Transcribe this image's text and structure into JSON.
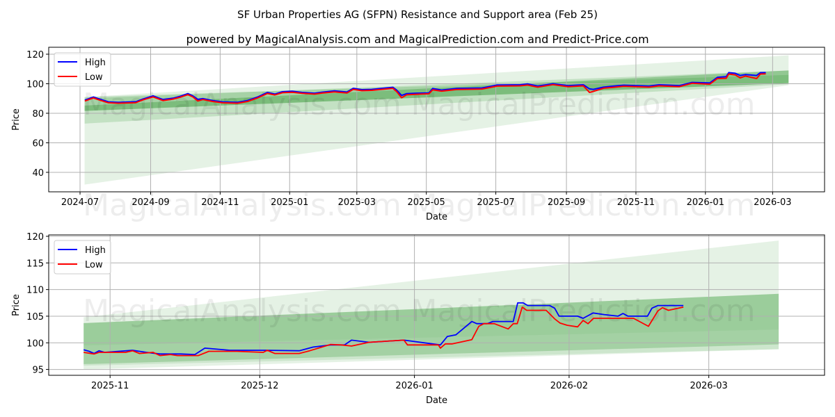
{
  "title": "SF Urban Properties AG (SFPN) Resistance and Support area (Feb 25)",
  "subtitle": "powered by MagicalAnalysis.com and MagicalPrediction.com and Predict-Price.com",
  "watermark": {
    "left": "MagicalAnalysis.com",
    "right": "MagicalPrediction.com"
  },
  "colors": {
    "high": "#0000ff",
    "low": "#ff0000",
    "band": "#008000",
    "grid": "#b0b0b0"
  },
  "chart_data": [
    {
      "type": "line",
      "name": "full-range",
      "x_unit": "days since 2024-07-01",
      "xlabel": "Date",
      "ylabel": "Price",
      "xlim": [
        -27.5,
        653.6
      ],
      "ylim": [
        26.8,
        124.7
      ],
      "grid": true,
      "legend": "top-left",
      "xticks": [
        {
          "v": 0,
          "label": "2024-07"
        },
        {
          "v": 62,
          "label": "2024-09"
        },
        {
          "v": 123,
          "label": "2024-11"
        },
        {
          "v": 184,
          "label": "2025-01"
        },
        {
          "v": 243,
          "label": "2025-03"
        },
        {
          "v": 304,
          "label": "2025-05"
        },
        {
          "v": 365,
          "label": "2025-07"
        },
        {
          "v": 427,
          "label": "2025-09"
        },
        {
          "v": 488,
          "label": "2025-11"
        },
        {
          "v": 549,
          "label": "2026-01"
        },
        {
          "v": 608,
          "label": "2026-03"
        }
      ],
      "yticks": [
        {
          "v": 40,
          "label": "40"
        },
        {
          "v": 60,
          "label": "60"
        },
        {
          "v": 80,
          "label": "80"
        },
        {
          "v": 100,
          "label": "100"
        },
        {
          "v": 120,
          "label": "120"
        }
      ],
      "bands": [
        {
          "x": [
            4,
            622
          ],
          "start": [
            31.7,
            91.0
          ],
          "end": [
            99.0,
            119.2
          ],
          "opacity": 0.1
        },
        {
          "x": [
            4,
            622
          ],
          "start": [
            73.0,
            90.0
          ],
          "end": [
            99.7,
            109.0
          ],
          "opacity": 0.15
        },
        {
          "x": [
            4,
            622
          ],
          "start": [
            81.6,
            91.0
          ],
          "end": [
            100.4,
            106.0
          ],
          "opacity": 0.15
        },
        {
          "x": [
            4,
            622
          ],
          "start": [
            81.6,
            85.2
          ],
          "end": [
            100.4,
            109.0
          ],
          "opacity": 0.25
        }
      ],
      "series": [
        {
          "name": "High",
          "x": [
            4.2,
            11.8,
            16.1,
            24.9,
            33.6,
            48.9,
            55.4,
            64.1,
            68.5,
            72.8,
            81.6,
            88.1,
            94.7,
            99,
            103.4,
            107.8,
            116.5,
            125.2,
            138.3,
            147,
            155.8,
            164.5,
            171,
            177.6,
            186.3,
            195,
            205.9,
            212.5,
            223.4,
            234.3,
            239.8,
            247.4,
            256.1,
            264.9,
            274.6,
            277.9,
            282.3,
            286.7,
            295.4,
            306.3,
            309.6,
            317.4,
            330.7,
            352.9,
            366.2,
            386.3,
            392.9,
            401.8,
            415.1,
            428.5,
            441.8,
            447.3,
            450.6,
            459.6,
            468.4,
            477.3,
            499.5,
            508.4,
            526.2,
            537.3,
            552.8,
            559.5,
            567.3,
            569.5,
            575.1,
            579.5,
            584,
            594,
            597.2,
            602
          ],
          "values": [
            88.9,
            91,
            89.9,
            87.7,
            87.4,
            87.8,
            89.7,
            91.8,
            90.5,
            89.3,
            90.2,
            91.5,
            93.3,
            91.8,
            89.4,
            89.9,
            88.6,
            87.7,
            87.4,
            88.6,
            91,
            94.1,
            93,
            94.6,
            94.9,
            94.1,
            93.6,
            94.3,
            95.2,
            94.4,
            96.9,
            96,
            96.2,
            96.9,
            97.6,
            95.7,
            92.1,
            93.3,
            93.6,
            93.8,
            96.8,
            95.7,
            96.8,
            97.1,
            99.1,
            99.3,
            99.9,
            98.4,
            100,
            98.7,
            99.3,
            96.5,
            96.2,
            97.7,
            98.4,
            99,
            98.4,
            99.3,
            98.7,
            100.9,
            100.5,
            104.3,
            104.8,
            107.5,
            107.1,
            105.6,
            106.2,
            105.6,
            107.5,
            107.5
          ]
        },
        {
          "name": "Low",
          "x": [
            4.2,
            11.8,
            16.1,
            24.9,
            33.6,
            48.9,
            55.4,
            64.1,
            68.5,
            72.8,
            81.6,
            88.1,
            94.7,
            99,
            103.4,
            107.8,
            116.5,
            125.2,
            138.3,
            147,
            155.8,
            164.5,
            171,
            177.6,
            186.3,
            195,
            205.9,
            212.5,
            223.4,
            234.3,
            239.8,
            247.4,
            256.1,
            264.9,
            274.6,
            277.9,
            282.3,
            286.7,
            295.4,
            306.3,
            309.6,
            317.4,
            330.7,
            352.9,
            366.2,
            386.3,
            392.9,
            401.8,
            415.1,
            428.5,
            441.8,
            447.3,
            450.6,
            459.6,
            468.4,
            477.3,
            499.5,
            508.4,
            526.2,
            537.3,
            552.8,
            559.5,
            567.3,
            569.5,
            575.1,
            579.5,
            584,
            594,
            597.2,
            602
          ],
          "values": [
            88.3,
            90.4,
            89.2,
            87.1,
            86.8,
            87.2,
            89.1,
            91.1,
            89.8,
            88.6,
            89.6,
            90.9,
            92.6,
            91.1,
            88.3,
            89.3,
            88,
            87.1,
            86.8,
            88,
            90.4,
            93.4,
            92.4,
            93.9,
            94.2,
            93.5,
            93,
            93.7,
            94.5,
            93.8,
            96.2,
            95.3,
            95.5,
            96.2,
            96.9,
            94.7,
            90.5,
            92.5,
            92.9,
            93.2,
            95.9,
            95,
            96.1,
            96.4,
            98.4,
            98.6,
            99.1,
            97.7,
            99.4,
            98,
            98.6,
            94.1,
            94.8,
            97,
            97.6,
            98.3,
            97.7,
            98.6,
            98,
            100.3,
            99.7,
            103.5,
            103.7,
            106.6,
            106,
            104,
            105.2,
            103.5,
            106.6,
            106.7
          ]
        }
      ]
    },
    {
      "type": "line",
      "name": "zoomed",
      "x_unit": "days since 2025-11-01",
      "xlabel": "Date",
      "ylabel": "Price",
      "xlim": [
        -12.3,
        143.2
      ],
      "ylim": [
        93.9,
        120.26
      ],
      "grid": true,
      "legend": "top-left",
      "xticks": [
        {
          "v": 0,
          "label": "2025-11"
        },
        {
          "v": 30,
          "label": "2025-12"
        },
        {
          "v": 61,
          "label": "2026-01"
        },
        {
          "v": 92,
          "label": "2026-02"
        },
        {
          "v": 120,
          "label": "2026-03"
        }
      ],
      "yticks": [
        {
          "v": 95,
          "label": "95"
        },
        {
          "v": 100,
          "label": "100"
        },
        {
          "v": 105,
          "label": "105"
        },
        {
          "v": 110,
          "label": "110"
        },
        {
          "v": 115,
          "label": "115"
        },
        {
          "v": 120,
          "label": "120"
        }
      ],
      "bands": [
        {
          "x": [
            -5.3,
            134
          ],
          "start": [
            95.0,
            104.8
          ],
          "end": [
            98.8,
            119.2
          ],
          "opacity": 0.1
        },
        {
          "x": [
            -5.3,
            134
          ],
          "start": [
            96.0,
            103.7
          ],
          "end": [
            99.7,
            109.2
          ],
          "opacity": 0.2
        },
        {
          "x": [
            -5.3,
            134
          ],
          "start": [
            99.5,
            103.7
          ],
          "end": [
            102.5,
            109.2
          ],
          "opacity": 0.15
        },
        {
          "x": [
            -5.3,
            134
          ],
          "start": [
            95.7,
            99.5
          ],
          "end": [
            98.8,
            102.5
          ],
          "opacity": 0.1
        }
      ],
      "series": [
        {
          "name": "High",
          "x": [
            -5.3,
            -4.2,
            -3.2,
            -2.2,
            -1.1,
            4.5,
            7.3,
            10,
            14.2,
            17,
            19,
            24,
            31,
            37.9,
            40.7,
            44.2,
            47,
            48.4,
            51.9,
            58.9,
            66.2,
            67.6,
            69.3,
            72.5,
            73.5,
            75.6,
            76.7,
            80.8,
            81.7,
            82.8,
            83.7,
            88.1,
            89.1,
            90,
            93.7,
            94.8,
            96.8,
            99,
            101.8,
            102.8,
            103.8,
            107.7,
            108.6,
            109.8,
            114.9
          ],
          "values": [
            98.7,
            98.4,
            98.0,
            98.5,
            98.2,
            98.6,
            98.2,
            97.9,
            97.9,
            97.8,
            99.0,
            98.6,
            98.6,
            98.5,
            99.2,
            99.6,
            99.6,
            100.5,
            100.1,
            100.5,
            99.6,
            101.2,
            101.5,
            104.0,
            103.6,
            103.6,
            104.0,
            104.0,
            107.5,
            107.5,
            107.0,
            107.0,
            106.5,
            105.0,
            105.0,
            104.6,
            105.6,
            105.3,
            105.0,
            105.5,
            105.0,
            105.0,
            106.5,
            107.0,
            107.0
          ]
        },
        {
          "name": "Low",
          "x": [
            -5.3,
            -3.2,
            -2.2,
            3.1,
            4.5,
            5.9,
            8.6,
            10,
            12.1,
            13.5,
            16.3,
            17.7,
            19.8,
            25.4,
            30.7,
            31.5,
            33,
            37.9,
            40,
            44.2,
            46.3,
            48.4,
            51.9,
            58.9,
            59.6,
            65.8,
            66.2,
            67.2,
            68.6,
            72.5,
            73.9,
            74.9,
            77,
            79.8,
            80.8,
            81.6,
            82.6,
            83.5,
            87.4,
            89.1,
            90.2,
            91.6,
            93.7,
            94.8,
            95.8,
            96.9,
            102.1,
            104.9,
            107.9,
            109.8,
            110.7,
            111.9,
            114.9
          ],
          "values": [
            98.2,
            97.9,
            98.2,
            98.2,
            98.5,
            98.0,
            98.2,
            97.6,
            97.8,
            97.6,
            97.6,
            97.6,
            98.4,
            98.4,
            98.2,
            98.6,
            98.0,
            98.0,
            98.5,
            99.7,
            99.6,
            99.4,
            100.1,
            100.5,
            99.6,
            99.6,
            99.0,
            99.8,
            99.8,
            100.6,
            103.1,
            103.6,
            103.6,
            102.6,
            103.6,
            103.6,
            106.7,
            106.1,
            106.1,
            104.5,
            103.7,
            103.3,
            103.0,
            104.2,
            103.6,
            104.6,
            104.6,
            104.6,
            103.1,
            106.0,
            106.6,
            106.1,
            106.7
          ]
        }
      ]
    }
  ]
}
